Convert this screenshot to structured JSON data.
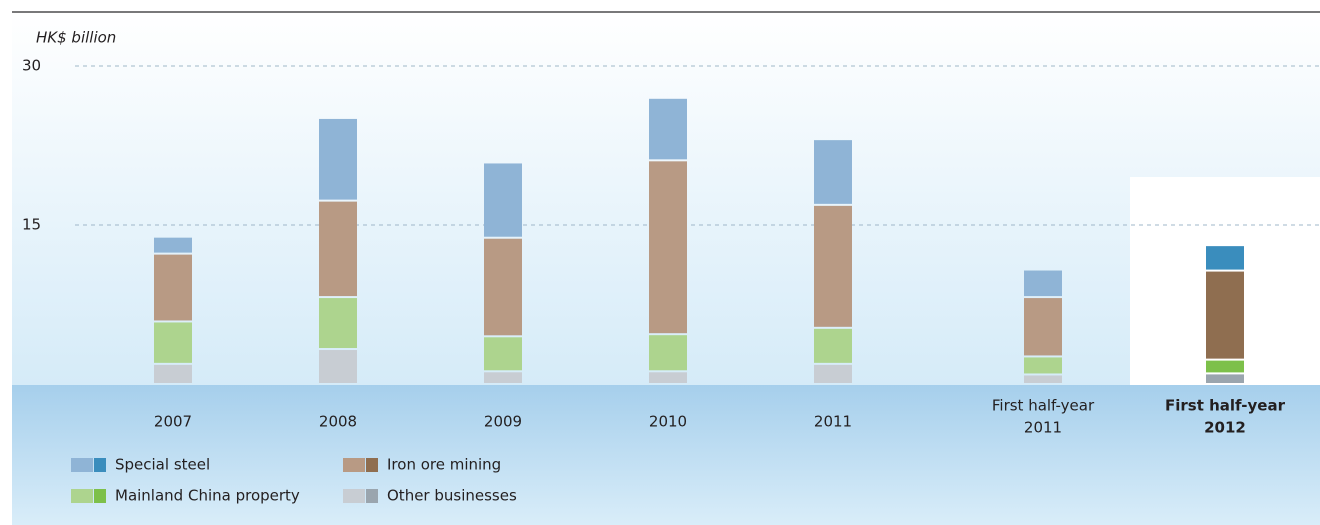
{
  "chart_data": {
    "type": "stacked-bar",
    "y_axis_label": "HK$ billion",
    "categories": [
      [
        "2007"
      ],
      [
        "2008"
      ],
      [
        "2009"
      ],
      [
        "2010"
      ],
      [
        "2011"
      ],
      [
        "First  half-year",
        "2011"
      ],
      [
        "First  half-year",
        "2012"
      ]
    ],
    "ylim": [
      0,
      30
    ],
    "yticks": [
      15,
      30
    ],
    "grid": true,
    "series": [
      {
        "name": "Other businesses",
        "color": "#c8cdd3",
        "highlight_color": "#9aa5ae",
        "values": [
          1.9,
          3.3,
          1.2,
          1.2,
          1.9,
          0.9,
          1.0
        ]
      },
      {
        "name": "Mainland China property",
        "color": "#add48e",
        "highlight_color": "#7dc04a",
        "values": [
          4.0,
          4.9,
          3.3,
          3.5,
          3.4,
          1.7,
          1.3
        ]
      },
      {
        "name": "Iron ore mining",
        "color": "#b89a84",
        "highlight_color": "#8f6e50",
        "values": [
          6.4,
          9.1,
          9.3,
          16.4,
          11.6,
          5.6,
          8.4
        ]
      },
      {
        "name": "Special steel",
        "color": "#8fb4d6",
        "highlight_color": "#3a8dbd",
        "values": [
          1.6,
          7.8,
          7.1,
          5.9,
          6.2,
          2.6,
          2.4
        ]
      }
    ]
  }
}
